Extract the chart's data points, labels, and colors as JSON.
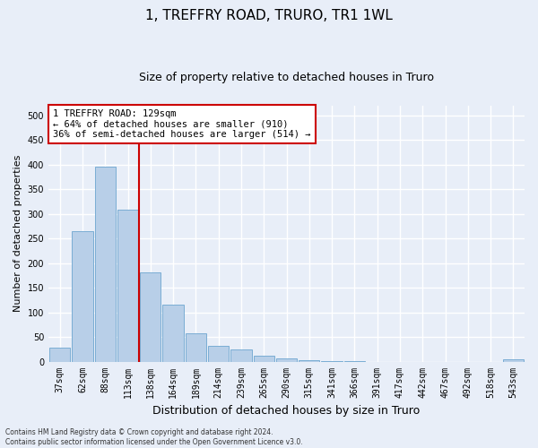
{
  "title": "1, TREFFRY ROAD, TRURO, TR1 1WL",
  "subtitle": "Size of property relative to detached houses in Truro",
  "xlabel": "Distribution of detached houses by size in Truro",
  "ylabel": "Number of detached properties",
  "categories": [
    "37sqm",
    "62sqm",
    "88sqm",
    "113sqm",
    "138sqm",
    "164sqm",
    "189sqm",
    "214sqm",
    "239sqm",
    "265sqm",
    "290sqm",
    "315sqm",
    "341sqm",
    "366sqm",
    "391sqm",
    "417sqm",
    "442sqm",
    "467sqm",
    "492sqm",
    "518sqm",
    "543sqm"
  ],
  "values": [
    28,
    265,
    395,
    308,
    182,
    115,
    57,
    32,
    24,
    12,
    6,
    3,
    1,
    1,
    0,
    0,
    0,
    0,
    0,
    0,
    4
  ],
  "bar_color": "#b8cfe8",
  "bar_edgecolor": "#7aadd4",
  "vline_x": 3.5,
  "vline_color": "#cc0000",
  "annotation_text": "1 TREFFRY ROAD: 129sqm\n← 64% of detached houses are smaller (910)\n36% of semi-detached houses are larger (514) →",
  "annotation_box_facecolor": "#ffffff",
  "annotation_box_edgecolor": "#cc0000",
  "ylim": [
    0,
    520
  ],
  "yticks": [
    0,
    50,
    100,
    150,
    200,
    250,
    300,
    350,
    400,
    450,
    500
  ],
  "footer": "Contains HM Land Registry data © Crown copyright and database right 2024.\nContains public sector information licensed under the Open Government Licence v3.0.",
  "background_color": "#e8eef8",
  "axes_background": "#e8eef8",
  "grid_color": "#ffffff",
  "title_fontsize": 11,
  "subtitle_fontsize": 9,
  "ylabel_fontsize": 8,
  "xlabel_fontsize": 9,
  "tick_fontsize": 7,
  "annotation_fontsize": 7.5,
  "footer_fontsize": 5.5
}
